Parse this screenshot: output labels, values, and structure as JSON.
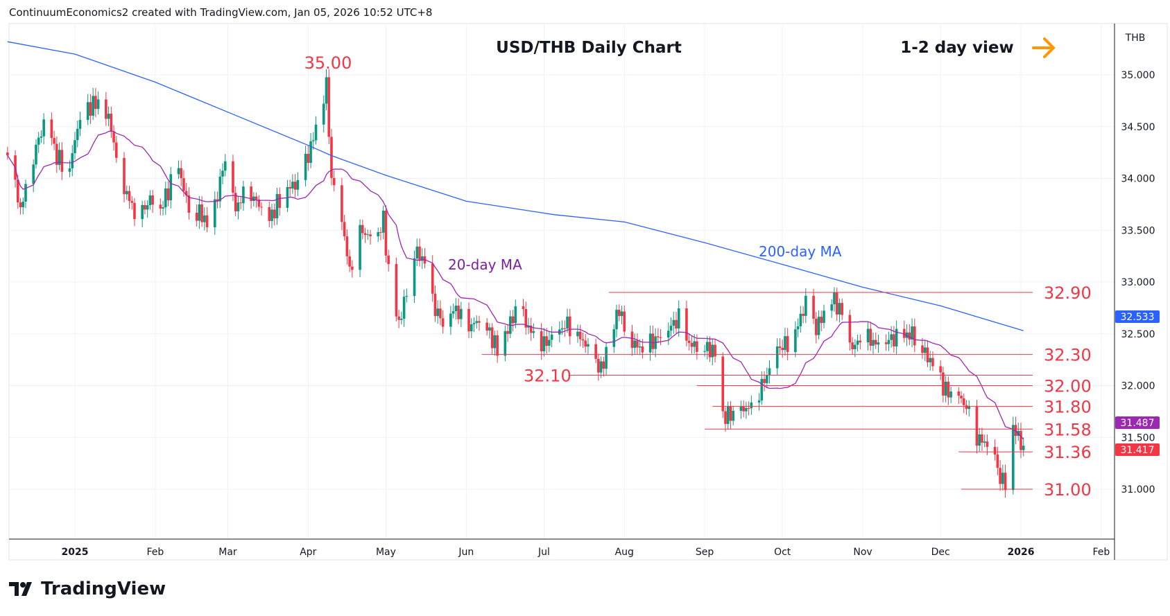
{
  "header": {
    "credit": "ContinuumEconomics2 created with TradingView.com, Jan 05, 2026 10:52 UTC+8"
  },
  "footer": {
    "logo_text": "TradingView"
  },
  "chart_data": {
    "type": "candlestick",
    "title": "USD/THB Daily Chart",
    "view_label": "1-2 day view",
    "view_icon": "arrow-right-icon",
    "currency": "THB",
    "ylim": [
      30.5,
      35.5
    ],
    "y_ticks": [
      "35.000",
      "34.500",
      "34.000",
      "33.500",
      "33.000",
      "32.500",
      "32.000",
      "31.500",
      "31.000"
    ],
    "x_ticks": [
      "2025",
      "Feb",
      "Mar",
      "Apr",
      "May",
      "Jun",
      "Jul",
      "Aug",
      "Sep",
      "Oct",
      "Nov",
      "Dec",
      "2026",
      "Feb"
    ],
    "colors": {
      "up": "#089981",
      "down": "#f23645",
      "ma20": "#9c27b0",
      "ma200": "#2962ff",
      "levels": "#f23645"
    },
    "close_path": [
      [
        "2024-12-06",
        34.25
      ],
      [
        "2024-12-11",
        33.7
      ],
      [
        "2024-12-17",
        34.3
      ],
      [
        "2024-12-21",
        34.6
      ],
      [
        "2024-12-25",
        34.2
      ],
      [
        "2024-12-30",
        34.1
      ],
      [
        "2025-01-02",
        34.5
      ],
      [
        "2025-01-07",
        34.7
      ],
      [
        "2025-01-11",
        34.75
      ],
      [
        "2025-01-15",
        34.5
      ],
      [
        "2025-01-18",
        34.0
      ],
      [
        "2025-01-22",
        33.8
      ],
      [
        "2025-01-25",
        33.6
      ],
      [
        "2025-01-30",
        33.8
      ],
      [
        "2025-02-03",
        33.7
      ],
      [
        "2025-02-07",
        33.95
      ],
      [
        "2025-02-10",
        34.1
      ],
      [
        "2025-02-14",
        33.7
      ],
      [
        "2025-02-19",
        33.65
      ],
      [
        "2025-02-22",
        33.5
      ],
      [
        "2025-02-28",
        34.2
      ],
      [
        "2025-03-04",
        33.7
      ],
      [
        "2025-03-08",
        33.9
      ],
      [
        "2025-03-13",
        33.75
      ],
      [
        "2025-03-17",
        33.6
      ],
      [
        "2025-03-23",
        33.9
      ],
      [
        "2025-03-28",
        33.95
      ],
      [
        "2025-04-02",
        34.3
      ],
      [
        "2025-04-08",
        34.9
      ],
      [
        "2025-04-10",
        34.0
      ],
      [
        "2025-04-14",
        33.6
      ],
      [
        "2025-04-17",
        33.1
      ],
      [
        "2025-04-21",
        33.5
      ],
      [
        "2025-04-27",
        33.4
      ],
      [
        "2025-04-30",
        33.6
      ],
      [
        "2025-05-03",
        32.85
      ],
      [
        "2025-05-06",
        32.6
      ],
      [
        "2025-05-09",
        32.9
      ],
      [
        "2025-05-12",
        33.3
      ],
      [
        "2025-05-16",
        33.2
      ],
      [
        "2025-05-19",
        32.8
      ],
      [
        "2025-05-23",
        32.6
      ],
      [
        "2025-05-28",
        32.75
      ],
      [
        "2025-06-01",
        32.55
      ],
      [
        "2025-06-07",
        32.65
      ],
      [
        "2025-06-13",
        32.35
      ],
      [
        "2025-06-18",
        32.6
      ],
      [
        "2025-06-21",
        32.8
      ],
      [
        "2025-06-25",
        32.55
      ],
      [
        "2025-07-01",
        32.4
      ],
      [
        "2025-07-10",
        32.6
      ],
      [
        "2025-07-17",
        32.4
      ],
      [
        "2025-07-23",
        32.15
      ],
      [
        "2025-07-27",
        32.5
      ],
      [
        "2025-07-30",
        32.75
      ],
      [
        "2025-08-02",
        32.45
      ],
      [
        "2025-08-08",
        32.35
      ],
      [
        "2025-08-16",
        32.5
      ],
      [
        "2025-08-22",
        32.65
      ],
      [
        "2025-08-26",
        32.4
      ],
      [
        "2025-09-03",
        32.35
      ],
      [
        "2025-09-06",
        32.3
      ],
      [
        "2025-09-08",
        31.7
      ],
      [
        "2025-09-14",
        31.75
      ],
      [
        "2025-09-19",
        31.8
      ],
      [
        "2025-09-25",
        32.1
      ],
      [
        "2025-09-29",
        32.35
      ],
      [
        "2025-10-05",
        32.45
      ],
      [
        "2025-10-10",
        32.8
      ],
      [
        "2025-10-14",
        32.55
      ],
      [
        "2025-10-20",
        32.85
      ],
      [
        "2025-10-24",
        32.7
      ],
      [
        "2025-10-28",
        32.35
      ],
      [
        "2025-11-01",
        32.5
      ],
      [
        "2025-11-06",
        32.4
      ],
      [
        "2025-11-12",
        32.45
      ],
      [
        "2025-11-20",
        32.5
      ],
      [
        "2025-11-24",
        32.35
      ],
      [
        "2025-11-28",
        32.2
      ],
      [
        "2025-12-03",
        31.95
      ],
      [
        "2025-12-08",
        31.9
      ],
      [
        "2025-12-12",
        31.75
      ],
      [
        "2025-12-15",
        31.5
      ],
      [
        "2025-12-21",
        31.4
      ],
      [
        "2025-12-24",
        31.1
      ],
      [
        "2025-12-27",
        31.05
      ],
      [
        "2025-12-29",
        31.6
      ],
      [
        "2025-12-31",
        31.5
      ],
      [
        "2026-01-02",
        31.42
      ]
    ],
    "ma200": {
      "label": "200-day MA",
      "last": "32.533",
      "path": [
        [
          "2024-12-06",
          35.32
        ],
        [
          "2025-01-01",
          35.2
        ],
        [
          "2025-02-01",
          34.93
        ],
        [
          "2025-03-01",
          34.64
        ],
        [
          "2025-04-01",
          34.32
        ],
        [
          "2025-04-10",
          34.22
        ],
        [
          "2025-05-01",
          34.03
        ],
        [
          "2025-06-01",
          33.78
        ],
        [
          "2025-07-05",
          33.65
        ],
        [
          "2025-08-01",
          33.58
        ],
        [
          "2025-09-01",
          33.38
        ],
        [
          "2025-10-01",
          33.17
        ],
        [
          "2025-11-01",
          32.95
        ],
        [
          "2025-12-01",
          32.77
        ],
        [
          "2026-01-02",
          32.53
        ]
      ]
    },
    "ma20": {
      "label": "20-day MA",
      "last": "31.487"
    },
    "last_price": "31.417",
    "peak_label": "35.00",
    "levels": [
      {
        "label": "32.90",
        "value": 32.9,
        "from": "2025-07-26",
        "label_side": "right"
      },
      {
        "label": "32.30",
        "value": 32.3,
        "from": "2025-06-07",
        "label_side": "right"
      },
      {
        "label": "32.10",
        "value": 32.1,
        "from": "2025-07-11",
        "label_side": "left"
      },
      {
        "label": "32.00",
        "value": 32.0,
        "from": "2025-08-29",
        "label_side": "right"
      },
      {
        "label": "31.80",
        "value": 31.8,
        "from": "2025-09-04",
        "label_side": "right"
      },
      {
        "label": "31.58",
        "value": 31.58,
        "from": "2025-09-01",
        "label_side": "right"
      },
      {
        "label": "31.36",
        "value": 31.36,
        "from": "2025-12-08",
        "label_side": "right"
      },
      {
        "label": "31.00",
        "value": 31.0,
        "from": "2025-12-09",
        "label_side": "right"
      }
    ]
  }
}
